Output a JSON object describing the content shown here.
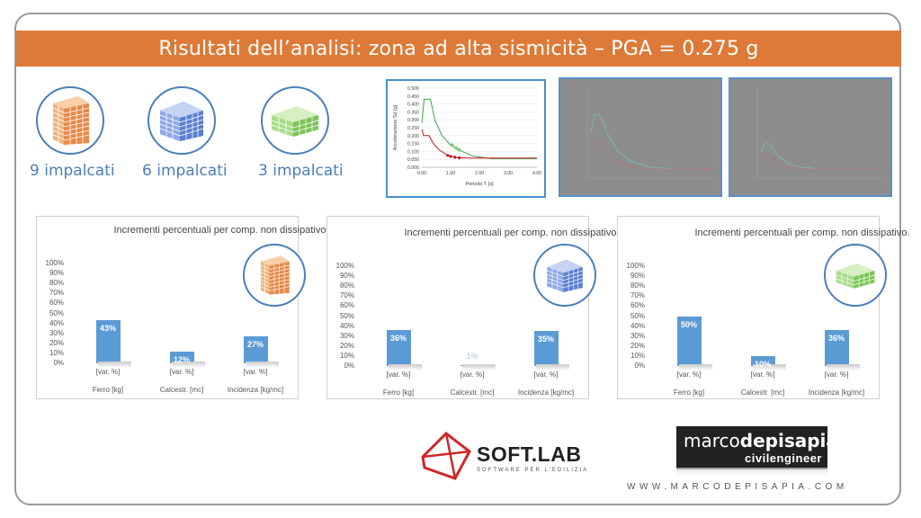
{
  "slide": {
    "title": "Risultati dell’analisi: zona ad alta sismicità – PGA = 0.275 g"
  },
  "buildings": [
    {
      "label": "9 impalcati",
      "icon": "building-9-storey-icon",
      "color": "#e8894a"
    },
    {
      "label": "6 impalcati",
      "icon": "building-6-storey-icon",
      "color": "#5a7fd0"
    },
    {
      "label": "3 impalcati",
      "icon": "building-3-storey-icon",
      "color": "#7cc45a"
    }
  ],
  "spectrum": {
    "ylabel": "Accelerazione Sd [g]",
    "xlabel": "Periodo T [s]",
    "yticks": [
      "0.500",
      "0.450",
      "0.400",
      "0.350",
      "0.300",
      "0.250",
      "0.200",
      "0.150",
      "0.100",
      "0.050",
      "0.000"
    ],
    "xticks": [
      "0.00",
      "1.00",
      "2.00",
      "3.00",
      "4.00"
    ]
  },
  "chart_data": [
    {
      "type": "bar",
      "title": "Incrementi percentuali per comp. non dissipativo.",
      "categories": [
        "Ferro [kg]",
        "Calcestr. [mc]",
        "Incidenza [kg/mc]"
      ],
      "sublabels": [
        "[var. %]",
        "[var. %]",
        "[var. %]"
      ],
      "values": [
        43,
        12,
        27
      ],
      "value_labels": [
        "43%",
        "12%",
        "27%"
      ],
      "ylim": [
        0,
        100
      ],
      "yticks": [
        "100%",
        "90%",
        "80%",
        "70%",
        "60%",
        "50%",
        "40%",
        "30%",
        "20%",
        "10%",
        "0%"
      ],
      "color": "#5b9bd5"
    },
    {
      "type": "bar",
      "title": "Incrementi percentuali per comp. non dissipativo.",
      "categories": [
        "Ferro [kg]",
        "Calcestr. [mc]",
        "Incidenza [kg/mc]"
      ],
      "sublabels": [
        "[var. %]",
        "[var. %]",
        "[var. %]"
      ],
      "values": [
        36,
        1,
        35
      ],
      "value_labels": [
        "36%",
        "1%",
        "35%"
      ],
      "ylim": [
        0,
        100
      ],
      "yticks": [
        "100%",
        "90%",
        "80%",
        "70%",
        "60%",
        "50%",
        "40%",
        "30%",
        "20%",
        "10%",
        "0%"
      ],
      "color": "#5b9bd5"
    },
    {
      "type": "bar",
      "title": "Incrementi percentuali per comp. non dissipativo.",
      "categories": [
        "Ferro [kg]",
        "Calcestr. [mc]",
        "Incidenza [kg/mc]"
      ],
      "sublabels": [
        "[var. %]",
        "[var. %]",
        "[var. %]"
      ],
      "values": [
        50,
        10,
        36
      ],
      "value_labels": [
        "50%",
        "10%",
        "36%"
      ],
      "ylim": [
        0,
        100
      ],
      "yticks": [
        "100%",
        "90%",
        "80%",
        "70%",
        "60%",
        "50%",
        "40%",
        "30%",
        "20%",
        "10%",
        "0%"
      ],
      "color": "#5b9bd5"
    }
  ],
  "logos": {
    "softlab_name": "SOFT.LAB",
    "softlab_tag": "SOFTWARE PER L'EDILIZIA",
    "mdp_name_a": "marco",
    "mdp_name_b": "depisapia",
    "mdp_sub": "civilengineer",
    "url": "WWW.MARCODEPISAPIA.COM"
  },
  "colors": {
    "title_bar": "#dd7a37",
    "accent_blue": "#4a7fb8",
    "bar": "#5b9bd5",
    "spectrum_green": "#2eaa4a",
    "spectrum_red": "#c0161b",
    "softlab_red": "#d0262a"
  }
}
